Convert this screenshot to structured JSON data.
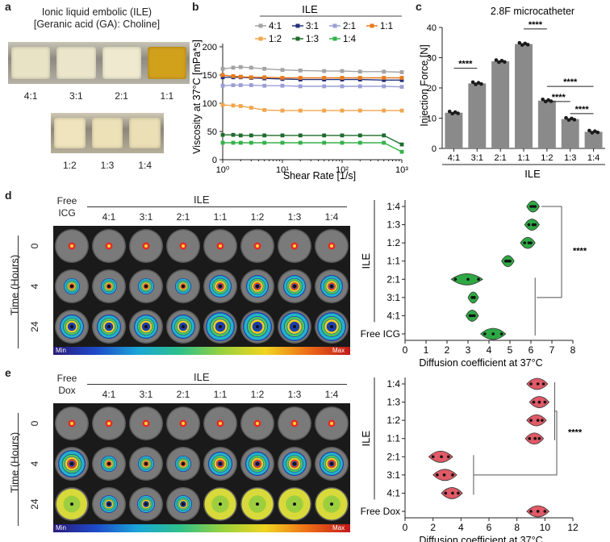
{
  "panels": {
    "a": {
      "letter": "a",
      "title_line1": "Ionic liquid embolic (ILE)",
      "title_line2": "[Geranic acid (GA): Choline]",
      "row1_labels": [
        "4:1",
        "3:1",
        "2:1",
        "1:1"
      ],
      "row2_labels": [
        "1:2",
        "1:3",
        "1:4"
      ],
      "row1_colors": [
        "#e9e3c6",
        "#ebe6cb",
        "#efe9cf",
        "#d2a11c"
      ],
      "row2_colors": [
        "#efe4bd",
        "#ede1b8",
        "#ebdfb6"
      ]
    },
    "b": {
      "letter": "b",
      "legend_title": "ILE",
      "legend": [
        {
          "label": "4:1",
          "color": "#a3a3a3"
        },
        {
          "label": "3:1",
          "color": "#25307a"
        },
        {
          "label": "2:1",
          "color": "#9c9fd6"
        },
        {
          "label": "1:1",
          "color": "#e87b1e"
        },
        {
          "label": "1:2",
          "color": "#f0a64e"
        },
        {
          "label": "1:3",
          "color": "#1f6b2d"
        },
        {
          "label": "1:4",
          "color": "#35b24a"
        }
      ]
    },
    "c": {
      "letter": "c",
      "significance": [
        "****",
        "****",
        "****",
        "****",
        "****"
      ]
    },
    "d": {
      "letter": "d",
      "min_label": "Min",
      "max_label": "Max",
      "free_label_line1": "Free",
      "free_label_line2": "ICG",
      "ile_label": "ILE",
      "col_labels": [
        "4:1",
        "3:1",
        "2:1",
        "1:1",
        "1:2",
        "1:3",
        "1:4"
      ],
      "time_label": "Time (Hours)",
      "time_ticks": [
        "0",
        "4",
        "24"
      ],
      "violin": {
        "categories": [
          "1:4",
          "1:3",
          "1:2",
          "1:1",
          "2:1",
          "3:1",
          "4:1",
          "Free ICG"
        ],
        "x_ticks": [
          "0",
          "1",
          "2",
          "3",
          "4",
          "5",
          "6",
          "7",
          "8"
        ],
        "ile_label": "ILE",
        "significance": "****",
        "xlabel_line1": "Diffusion coefficient at 37°C",
        "xlabel_line2": "[x10⁻⁵ cm²s⁻¹]"
      }
    },
    "e": {
      "letter": "e",
      "min_label": "Min",
      "max_label": "Max",
      "free_label_line1": "Free",
      "free_label_line2": "Dox",
      "ile_label": "ILE",
      "col_labels": [
        "4:1",
        "3:1",
        "2:1",
        "1:1",
        "1:2",
        "1:3",
        "1:4"
      ],
      "time_label": "Time (Hours)",
      "time_ticks": [
        "0",
        "4",
        "24"
      ],
      "violin": {
        "categories": [
          "1:4",
          "1:3",
          "1:2",
          "1:1",
          "2:1",
          "3:1",
          "4:1",
          "Free Dox"
        ],
        "x_ticks": [
          "0",
          "2",
          "4",
          "6",
          "8",
          "10",
          "12"
        ],
        "ile_label": "ILE",
        "significance": "****",
        "xlabel_line1": "Diffusion coefficient at 37°C",
        "xlabel_line2": "[x10⁻⁵ cm²s⁻¹]"
      }
    }
  },
  "chart_data": [
    {
      "type": "line",
      "panel": "b",
      "xlabel": "Shear Rate [1/s]",
      "ylabel": "Viscosity at 37°C [mPa*s]",
      "x_scale": "log",
      "xlim": [
        1,
        1000
      ],
      "ylim": [
        0,
        200
      ],
      "y_ticks": [
        "0",
        "50",
        "100",
        "150",
        "200"
      ],
      "x_ticks": [
        "10⁰",
        "10¹",
        "10²",
        "10³"
      ],
      "x": [
        1,
        1.5,
        2,
        3,
        5,
        10,
        20,
        50,
        100,
        200,
        500,
        1000
      ],
      "series": [
        {
          "name": "4:1",
          "color": "#a3a3a3",
          "values": [
            161,
            163,
            164,
            163,
            161,
            159,
            158,
            157,
            157,
            156,
            156,
            155
          ]
        },
        {
          "name": "3:1",
          "color": "#25307a",
          "values": [
            146,
            146,
            146,
            145,
            144,
            143,
            142,
            142,
            142,
            142,
            141,
            141
          ]
        },
        {
          "name": "2:1",
          "color": "#9c9fd6",
          "values": [
            131,
            132,
            132,
            132,
            131,
            131,
            130,
            130,
            130,
            130,
            130,
            129
          ]
        },
        {
          "name": "1:1",
          "color": "#e87b1e",
          "values": [
            150,
            148,
            147,
            146,
            146,
            145,
            145,
            145,
            145,
            145,
            145,
            145
          ]
        },
        {
          "name": "1:2",
          "color": "#f0a64e",
          "values": [
            97,
            96,
            95,
            92,
            88,
            87,
            87,
            87,
            87,
            87,
            87,
            87
          ]
        },
        {
          "name": "1:3",
          "color": "#1f6b2d",
          "values": [
            44,
            44,
            43,
            43,
            43,
            43,
            43,
            43,
            43,
            43,
            43,
            27
          ]
        },
        {
          "name": "1:4",
          "color": "#35b24a",
          "values": [
            30,
            30,
            30,
            30,
            30,
            30,
            30,
            30,
            30,
            30,
            30,
            14
          ]
        }
      ]
    },
    {
      "type": "bar",
      "panel": "c",
      "title": "2.8F microcatheter",
      "ylabel": "Injection Force [N]",
      "xlabel": "ILE",
      "categories": [
        "4:1",
        "3:1",
        "2:1",
        "1:1",
        "1:2",
        "1:3",
        "1:4"
      ],
      "values": [
        11.8,
        21.5,
        28.8,
        34.5,
        15.8,
        9.7,
        5.5
      ],
      "ylim": [
        0,
        40
      ],
      "y_ticks": [
        "0",
        "10",
        "20",
        "30",
        "40"
      ],
      "bar_color": "#8a8a8a"
    },
    {
      "type": "scatter",
      "panel": "d",
      "xlim": [
        0,
        8
      ],
      "categories": [
        "1:4",
        "1:3",
        "1:2",
        "1:1",
        "2:1",
        "3:1",
        "4:1",
        "Free ICG"
      ],
      "values": [
        [
          6.0,
          6.1,
          6.2
        ],
        [
          5.9,
          6.1,
          6.2
        ],
        [
          5.7,
          5.9,
          6.0
        ],
        [
          4.8,
          4.9,
          5.0
        ],
        [
          2.4,
          3.0,
          3.5
        ],
        [
          3.2,
          3.3,
          3.3
        ],
        [
          3.1,
          3.2,
          3.3
        ],
        [
          3.8,
          4.2,
          4.6
        ]
      ],
      "color": "#2ea844"
    },
    {
      "type": "scatter",
      "panel": "e",
      "xlim": [
        0,
        12
      ],
      "categories": [
        "1:4",
        "1:3",
        "1:2",
        "1:1",
        "2:1",
        "3:1",
        "4:1",
        "Free Dox"
      ],
      "values": [
        [
          9.0,
          9.5,
          9.9
        ],
        [
          9.2,
          9.6,
          10.0
        ],
        [
          9.0,
          9.5,
          9.8
        ],
        [
          8.9,
          9.3,
          9.6
        ],
        [
          2.0,
          2.6,
          3.1
        ],
        [
          2.3,
          2.8,
          3.4
        ],
        [
          2.9,
          3.4,
          3.8
        ],
        [
          9.0,
          9.5,
          10.0
        ]
      ],
      "color": "#e05a67"
    }
  ]
}
